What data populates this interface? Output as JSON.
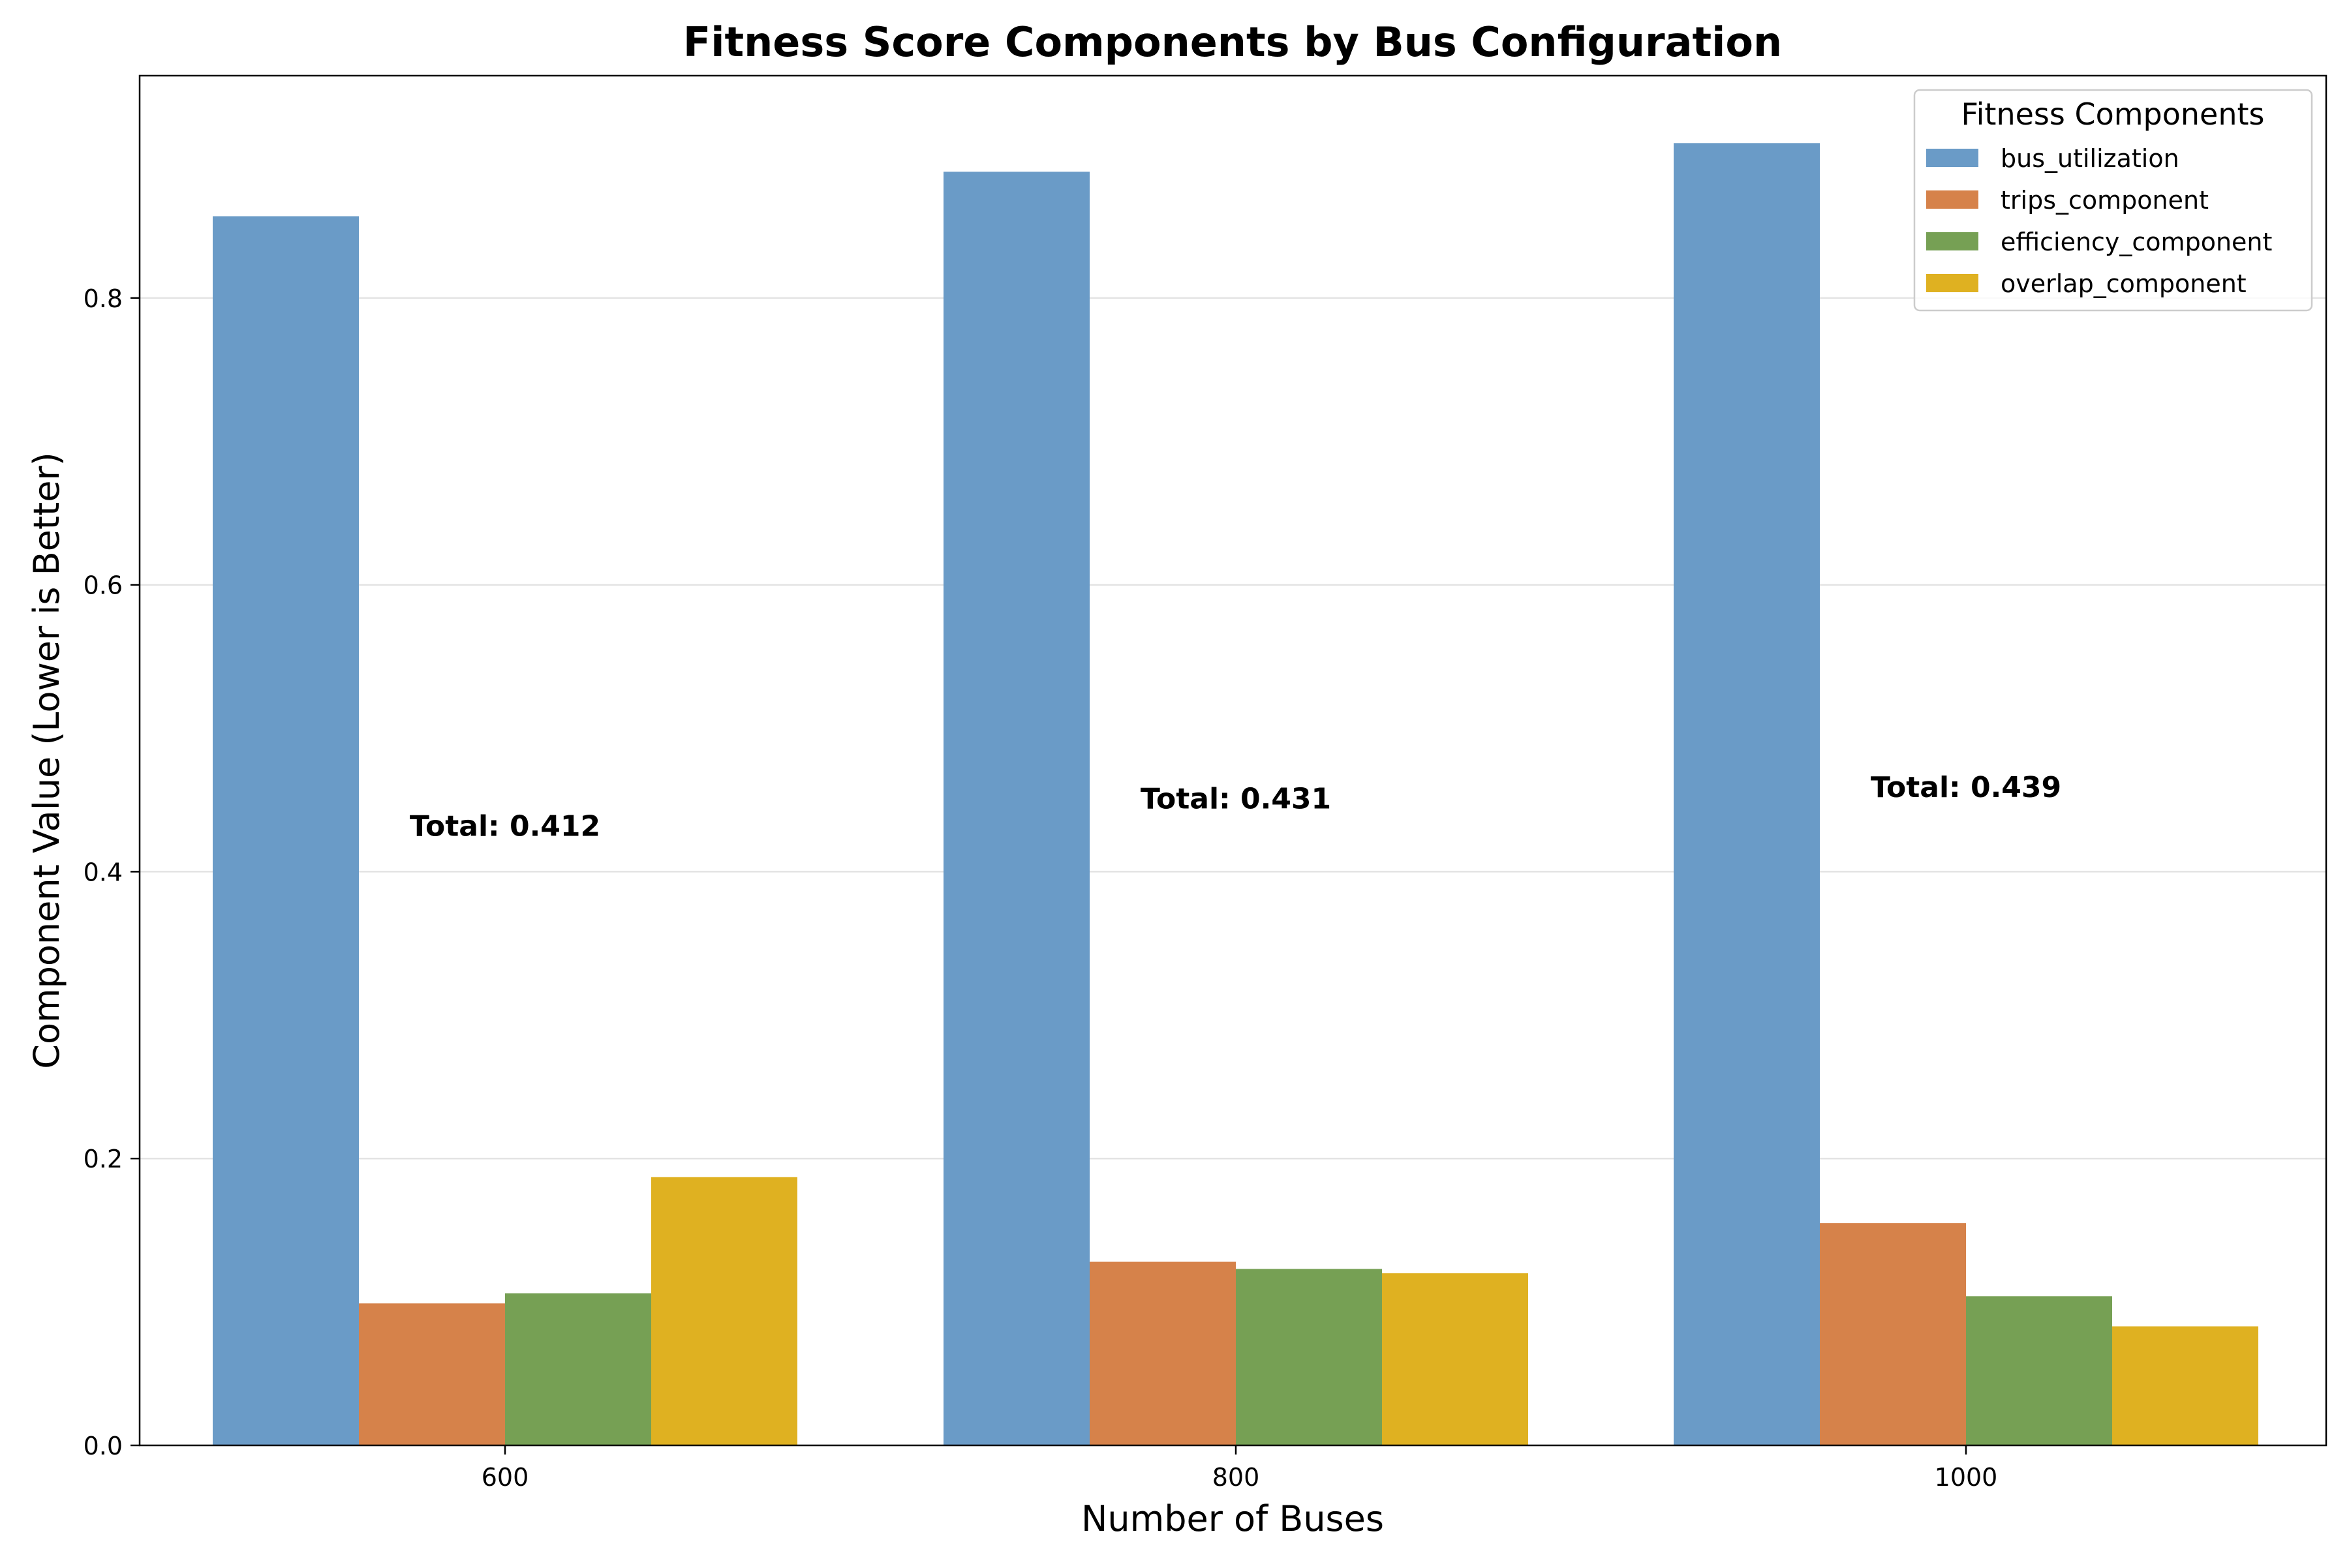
{
  "chart_data": {
    "type": "bar",
    "title": "Fitness Score Components by Bus Configuration",
    "xlabel": "Number of Buses",
    "ylabel": "Component Value (Lower is Better)",
    "categories": [
      "600",
      "800",
      "1000"
    ],
    "ylim": [
      0,
      0.955
    ],
    "yticks": [
      0.0,
      0.2,
      0.4,
      0.6,
      0.8
    ],
    "ytick_labels": [
      "0.0",
      "0.2",
      "0.4",
      "0.6",
      "0.8"
    ],
    "grid": "y",
    "series": [
      {
        "name": "bus_utilization",
        "color": "#6a9bc7",
        "values": [
          0.857,
          0.888,
          0.908
        ]
      },
      {
        "name": "trips_component",
        "color": "#d6824a",
        "values": [
          0.099,
          0.128,
          0.155
        ]
      },
      {
        "name": "efficiency_component",
        "color": "#76a054",
        "values": [
          0.106,
          0.123,
          0.104
        ]
      },
      {
        "name": "overlap_component",
        "color": "#dfb121",
        "values": [
          0.187,
          0.12,
          0.083
        ]
      }
    ],
    "totals": [
      {
        "label": "Total: 0.412",
        "value": 0.412
      },
      {
        "label": "Total: 0.431",
        "value": 0.431
      },
      {
        "label": "Total: 0.439",
        "value": 0.439
      }
    ],
    "legend": {
      "title": "Fitness Components",
      "placement": "top-right"
    }
  }
}
